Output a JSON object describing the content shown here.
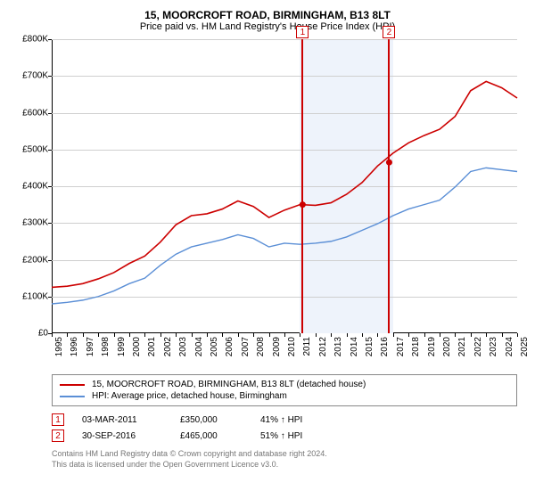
{
  "title": "15, MOORCROFT ROAD, BIRMINGHAM, B13 8LT",
  "subtitle": "Price paid vs. HM Land Registry's House Price Index (HPI)",
  "title_fontsize": 12,
  "subtitle_fontsize": 11,
  "chart": {
    "type": "line",
    "background_color": "#ffffff",
    "grid_color": "#cfcfcf",
    "ylim": [
      0,
      800000
    ],
    "ytick_step": 100000,
    "y_labels": [
      "£0",
      "£100K",
      "£200K",
      "£300K",
      "£400K",
      "£500K",
      "£600K",
      "£700K",
      "£800K"
    ],
    "x_years": [
      1995,
      1996,
      1997,
      1998,
      1999,
      2000,
      2001,
      2002,
      2003,
      2004,
      2005,
      2006,
      2007,
      2008,
      2009,
      2010,
      2011,
      2012,
      2013,
      2014,
      2015,
      2016,
      2017,
      2018,
      2019,
      2020,
      2021,
      2022,
      2023,
      2024,
      2025
    ],
    "shaded_bands": [
      {
        "from_year": 2011,
        "to_year": 2017,
        "color": "#eef3fb"
      }
    ],
    "markers": [
      {
        "id": "1",
        "year": 2011.17,
        "value": 350000
      },
      {
        "id": "2",
        "year": 2016.75,
        "value": 465000
      }
    ],
    "series": [
      {
        "name": "15, MOORCROFT ROAD, BIRMINGHAM, B13 8LT (detached house)",
        "color": "#cc0000",
        "line_width": 1.6,
        "points": [
          [
            1995,
            125000
          ],
          [
            1996,
            128000
          ],
          [
            1997,
            135000
          ],
          [
            1998,
            148000
          ],
          [
            1999,
            165000
          ],
          [
            2000,
            190000
          ],
          [
            2001,
            210000
          ],
          [
            2002,
            248000
          ],
          [
            2003,
            295000
          ],
          [
            2004,
            320000
          ],
          [
            2005,
            325000
          ],
          [
            2006,
            338000
          ],
          [
            2007,
            360000
          ],
          [
            2008,
            345000
          ],
          [
            2009,
            315000
          ],
          [
            2010,
            335000
          ],
          [
            2011,
            350000
          ],
          [
            2012,
            348000
          ],
          [
            2013,
            355000
          ],
          [
            2014,
            378000
          ],
          [
            2015,
            410000
          ],
          [
            2016,
            455000
          ],
          [
            2017,
            490000
          ],
          [
            2018,
            518000
          ],
          [
            2019,
            538000
          ],
          [
            2020,
            555000
          ],
          [
            2021,
            590000
          ],
          [
            2022,
            660000
          ],
          [
            2023,
            685000
          ],
          [
            2024,
            668000
          ],
          [
            2025,
            640000
          ]
        ]
      },
      {
        "name": "HPI: Average price, detached house, Birmingham",
        "color": "#5b8fd6",
        "line_width": 1.4,
        "points": [
          [
            1995,
            80000
          ],
          [
            1996,
            84000
          ],
          [
            1997,
            90000
          ],
          [
            1998,
            100000
          ],
          [
            1999,
            115000
          ],
          [
            2000,
            135000
          ],
          [
            2001,
            150000
          ],
          [
            2002,
            185000
          ],
          [
            2003,
            215000
          ],
          [
            2004,
            235000
          ],
          [
            2005,
            245000
          ],
          [
            2006,
            255000
          ],
          [
            2007,
            268000
          ],
          [
            2008,
            258000
          ],
          [
            2009,
            235000
          ],
          [
            2010,
            245000
          ],
          [
            2011,
            242000
          ],
          [
            2012,
            245000
          ],
          [
            2013,
            250000
          ],
          [
            2014,
            262000
          ],
          [
            2015,
            280000
          ],
          [
            2016,
            298000
          ],
          [
            2017,
            320000
          ],
          [
            2018,
            338000
          ],
          [
            2019,
            350000
          ],
          [
            2020,
            362000
          ],
          [
            2021,
            398000
          ],
          [
            2022,
            440000
          ],
          [
            2023,
            450000
          ],
          [
            2024,
            445000
          ],
          [
            2025,
            440000
          ]
        ]
      }
    ]
  },
  "legend": {
    "items": [
      {
        "label": "15, MOORCROFT ROAD, BIRMINGHAM, B13 8LT (detached house)",
        "color": "#cc0000"
      },
      {
        "label": "HPI: Average price, detached house, Birmingham",
        "color": "#5b8fd6"
      }
    ]
  },
  "sales": [
    {
      "badge": "1",
      "date": "03-MAR-2011",
      "price": "£350,000",
      "delta": "41% ↑ HPI"
    },
    {
      "badge": "2",
      "date": "30-SEP-2016",
      "price": "£465,000",
      "delta": "51% ↑ HPI"
    }
  ],
  "footer_line1": "Contains HM Land Registry data © Crown copyright and database right 2024.",
  "footer_line2": "This data is licensed under the Open Government Licence v3.0."
}
